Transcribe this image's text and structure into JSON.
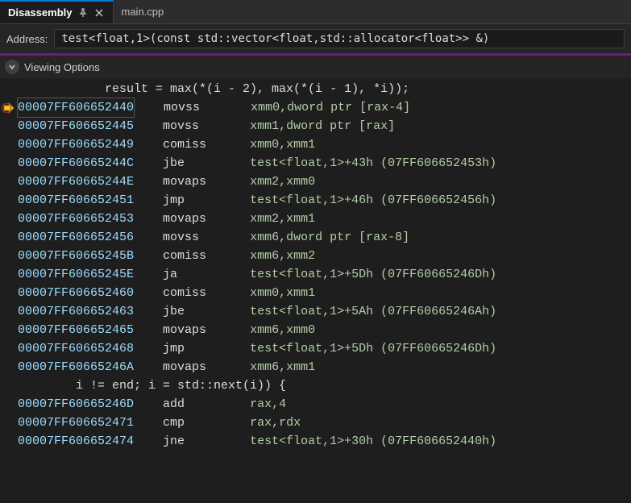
{
  "tabs": {
    "active": "Disassembly",
    "inactive": "main.cpp"
  },
  "address": {
    "label": "Address:",
    "value": "test<float,1>(const std::vector<float,std::allocator<float>> &)"
  },
  "viewing_options": "Viewing Options",
  "colors": {
    "background": "#1e1e1e",
    "panel": "#252526",
    "tabbar": "#2d2d30",
    "border": "#3f3f46",
    "accent_purple": "#68217a",
    "tab_active_border": "#007acc",
    "text": "#dcdcdc",
    "addr": "#9cdcfe",
    "operand": "#b5cea8",
    "arrow_fill": "#f5c518",
    "arrow_stroke": "#b8860b"
  },
  "layout": {
    "addr_col": 20,
    "mnemonic_col": 12,
    "line_height": 23,
    "font_size": 15,
    "gutter_width": 22
  },
  "lines": [
    {
      "type": "source",
      "indent": 12,
      "text": "result = max(*(i - 2), max(*(i - 1), *i));"
    },
    {
      "type": "asm",
      "current": true,
      "addr": "00007FF606652440",
      "mnemonic": "movss",
      "operands": "xmm0,dword ptr [rax-4]",
      "boxed": true
    },
    {
      "type": "asm",
      "addr": "00007FF606652445",
      "mnemonic": "movss",
      "operands": "xmm1,dword ptr [rax]"
    },
    {
      "type": "asm",
      "addr": "00007FF606652449",
      "mnemonic": "comiss",
      "operands": "xmm0,xmm1"
    },
    {
      "type": "asm",
      "addr": "00007FF60665244C",
      "mnemonic": "jbe",
      "operands": "test<float,1>+43h (07FF606652453h)"
    },
    {
      "type": "asm",
      "addr": "00007FF60665244E",
      "mnemonic": "movaps",
      "operands": "xmm2,xmm0"
    },
    {
      "type": "asm",
      "addr": "00007FF606652451",
      "mnemonic": "jmp",
      "operands": "test<float,1>+46h (07FF606652456h)"
    },
    {
      "type": "asm",
      "addr": "00007FF606652453",
      "mnemonic": "movaps",
      "operands": "xmm2,xmm1"
    },
    {
      "type": "asm",
      "addr": "00007FF606652456",
      "mnemonic": "movss",
      "operands": "xmm6,dword ptr [rax-8]"
    },
    {
      "type": "asm",
      "addr": "00007FF60665245B",
      "mnemonic": "comiss",
      "operands": "xmm6,xmm2"
    },
    {
      "type": "asm",
      "addr": "00007FF60665245E",
      "mnemonic": "ja",
      "operands": "test<float,1>+5Dh (07FF60665246Dh)"
    },
    {
      "type": "asm",
      "addr": "00007FF606652460",
      "mnemonic": "comiss",
      "operands": "xmm0,xmm1"
    },
    {
      "type": "asm",
      "addr": "00007FF606652463",
      "mnemonic": "jbe",
      "operands": "test<float,1>+5Ah (07FF60665246Ah)"
    },
    {
      "type": "asm",
      "addr": "00007FF606652465",
      "mnemonic": "movaps",
      "operands": "xmm6,xmm0"
    },
    {
      "type": "asm",
      "addr": "00007FF606652468",
      "mnemonic": "jmp",
      "operands": "test<float,1>+5Dh (07FF60665246Dh)"
    },
    {
      "type": "asm",
      "addr": "00007FF60665246A",
      "mnemonic": "movaps",
      "operands": "xmm6,xmm1"
    },
    {
      "type": "source",
      "indent": 8,
      "text": "i != end; i = std::next(i)) {"
    },
    {
      "type": "asm",
      "addr": "00007FF60665246D",
      "mnemonic": "add",
      "operands": "rax,4"
    },
    {
      "type": "asm",
      "addr": "00007FF606652471",
      "mnemonic": "cmp",
      "operands": "rax,rdx"
    },
    {
      "type": "asm",
      "addr": "00007FF606652474",
      "mnemonic": "jne",
      "operands": "test<float,1>+30h (07FF606652440h)"
    }
  ]
}
